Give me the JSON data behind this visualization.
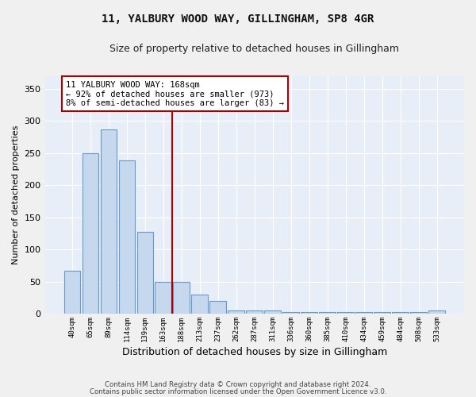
{
  "title": "11, YALBURY WOOD WAY, GILLINGHAM, SP8 4GR",
  "subtitle": "Size of property relative to detached houses in Gillingham",
  "xlabel": "Distribution of detached houses by size in Gillingham",
  "ylabel": "Number of detached properties",
  "bar_color": "#c5d8ee",
  "bar_edge_color": "#6699cc",
  "background_color": "#e8eef8",
  "grid_color": "#ffffff",
  "fig_background": "#f0f0f0",
  "annotation_line_color": "#aa0000",
  "annotation_box_color": "#aa0000",
  "annotation_text": "11 YALBURY WOOD WAY: 168sqm\n← 92% of detached houses are smaller (973)\n8% of semi-detached houses are larger (83) →",
  "categories": [
    "40sqm",
    "65sqm",
    "89sqm",
    "114sqm",
    "139sqm",
    "163sqm",
    "188sqm",
    "213sqm",
    "237sqm",
    "262sqm",
    "287sqm",
    "311sqm",
    "336sqm",
    "360sqm",
    "385sqm",
    "410sqm",
    "434sqm",
    "459sqm",
    "484sqm",
    "508sqm",
    "533sqm"
  ],
  "values": [
    67,
    250,
    287,
    238,
    127,
    50,
    50,
    30,
    20,
    5,
    5,
    5,
    2,
    2,
    2,
    2,
    2,
    2,
    2,
    2,
    5
  ],
  "ylim": [
    0,
    370
  ],
  "yticks": [
    0,
    50,
    100,
    150,
    200,
    250,
    300,
    350
  ],
  "line_index": 5.5,
  "footnote1": "Contains HM Land Registry data © Crown copyright and database right 2024.",
  "footnote2": "Contains public sector information licensed under the Open Government Licence v3.0."
}
